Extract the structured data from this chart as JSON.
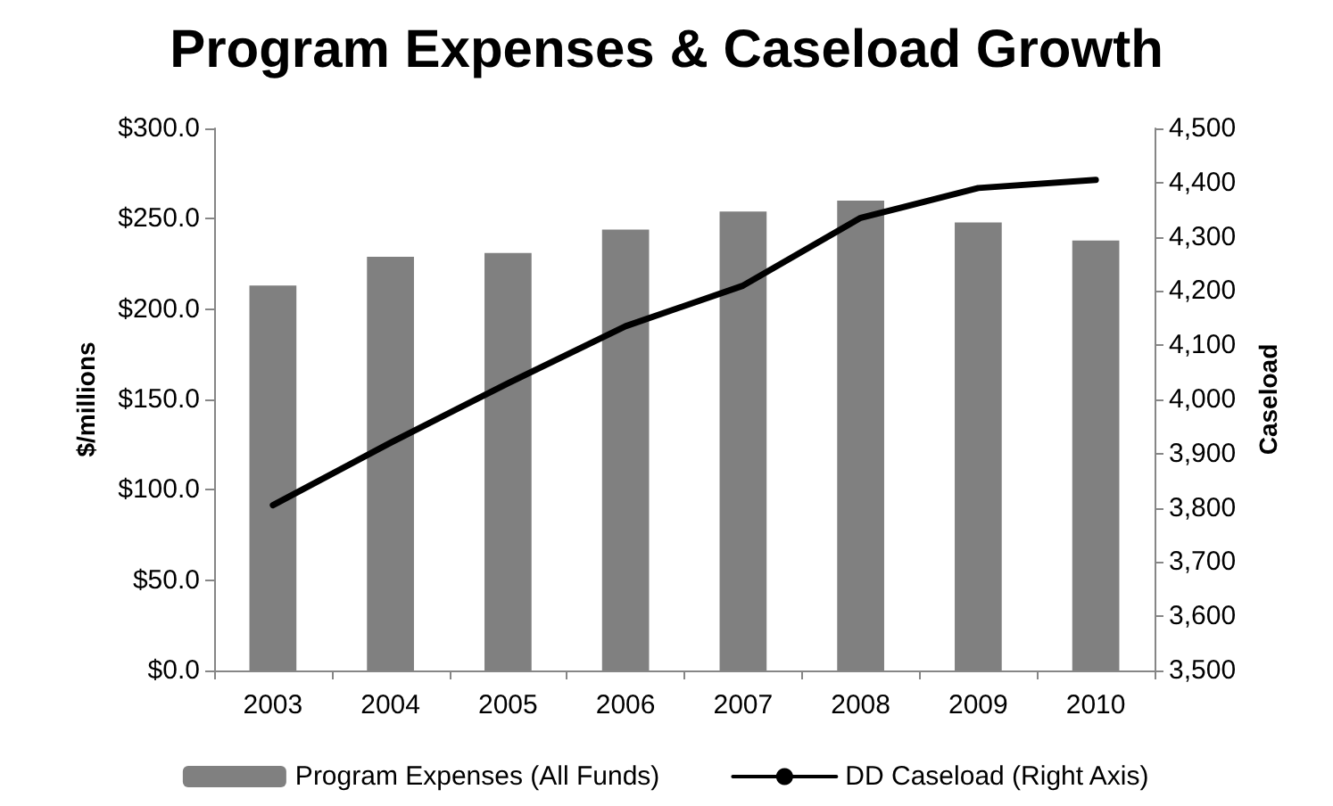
{
  "chart_data": {
    "type": "bar",
    "title": "Program Expenses & Caseload Growth",
    "ylabel": "$/millions",
    "y2label": "Caseload",
    "categories": [
      "2003",
      "2004",
      "2005",
      "2006",
      "2007",
      "2008",
      "2009",
      "2010"
    ],
    "series": [
      {
        "name": "Program Expenses (All Funds)",
        "color": "#808080",
        "values": [
          213,
          229,
          231,
          244,
          254,
          260,
          248,
          238
        ]
      },
      {
        "name": "DD Caseload (Right Axis)",
        "type": "line",
        "axis": "y2",
        "color": "#000000",
        "values": [
          3805,
          3920,
          4030,
          4135,
          4210,
          4335,
          4390,
          4405
        ]
      }
    ],
    "ylim": [
      0,
      300
    ],
    "yticks": [
      {
        "value": 0,
        "label": "$0.0"
      },
      {
        "value": 50,
        "label": "$50.0"
      },
      {
        "value": 100,
        "label": "$100.0"
      },
      {
        "value": 150,
        "label": "$150.0"
      },
      {
        "value": 200,
        "label": "$200.0"
      },
      {
        "value": 250,
        "label": "$250.0"
      },
      {
        "value": 300,
        "label": "$300.0"
      }
    ],
    "y2lim": [
      3500,
      4500
    ],
    "y2ticks": [
      {
        "value": 3500,
        "label": "3,500"
      },
      {
        "value": 3600,
        "label": "3,600"
      },
      {
        "value": 3700,
        "label": "3,700"
      },
      {
        "value": 3800,
        "label": "3,800"
      },
      {
        "value": 3900,
        "label": "3,900"
      },
      {
        "value": 4000,
        "label": "4,000"
      },
      {
        "value": 4100,
        "label": "4,100"
      },
      {
        "value": 4200,
        "label": "4,200"
      },
      {
        "value": 4300,
        "label": "4,300"
      },
      {
        "value": 4400,
        "label": "4,400"
      },
      {
        "value": 4500,
        "label": "4,500"
      }
    ],
    "grid": false,
    "legend": "bottom",
    "marker": "none",
    "line_style": "solid"
  }
}
